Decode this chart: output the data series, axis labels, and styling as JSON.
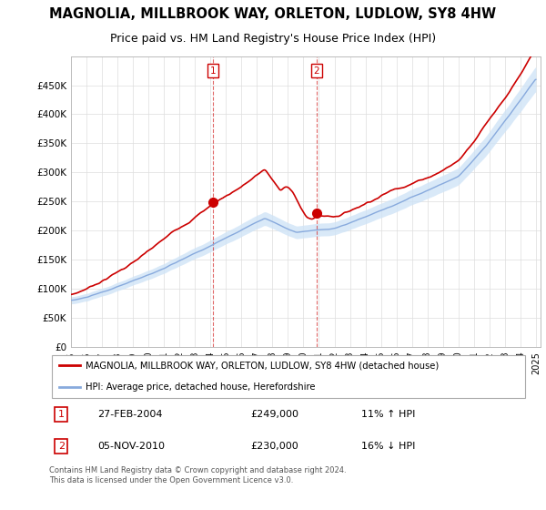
{
  "title": "MAGNOLIA, MILLBROOK WAY, ORLETON, LUDLOW, SY8 4HW",
  "subtitle": "Price paid vs. HM Land Registry's House Price Index (HPI)",
  "title_fontsize": 10.5,
  "subtitle_fontsize": 9,
  "sale1_date": "27-FEB-2004",
  "sale1_price": 249000,
  "sale1_label": "1",
  "sale1_hpi_diff": "11% ↑ HPI",
  "sale2_date": "05-NOV-2010",
  "sale2_price": 230000,
  "sale2_label": "2",
  "sale2_hpi_diff": "16% ↓ HPI",
  "legend_entry1": "MAGNOLIA, MILLBROOK WAY, ORLETON, LUDLOW, SY8 4HW (detached house)",
  "legend_entry2": "HPI: Average price, detached house, Herefordshire",
  "footer": "Contains HM Land Registry data © Crown copyright and database right 2024.\nThis data is licensed under the Open Government Licence v3.0.",
  "property_color": "#cc0000",
  "hpi_color": "#88aadd",
  "hpi_fill_color": "#d0e4f7",
  "background_color": "#ffffff",
  "plot_bg_color": "#ffffff",
  "grid_color": "#dddddd",
  "ylim": [
    0,
    500000
  ],
  "yticks": [
    0,
    50000,
    100000,
    150000,
    200000,
    250000,
    300000,
    350000,
    400000,
    450000
  ],
  "ytick_labels": [
    "£0",
    "£50K",
    "£100K",
    "£150K",
    "£200K",
    "£250K",
    "£300K",
    "£350K",
    "£400K",
    "£450K"
  ],
  "sale1_year": 2004.15,
  "sale2_year": 2010.84,
  "xmin": 1995,
  "xmax": 2025
}
